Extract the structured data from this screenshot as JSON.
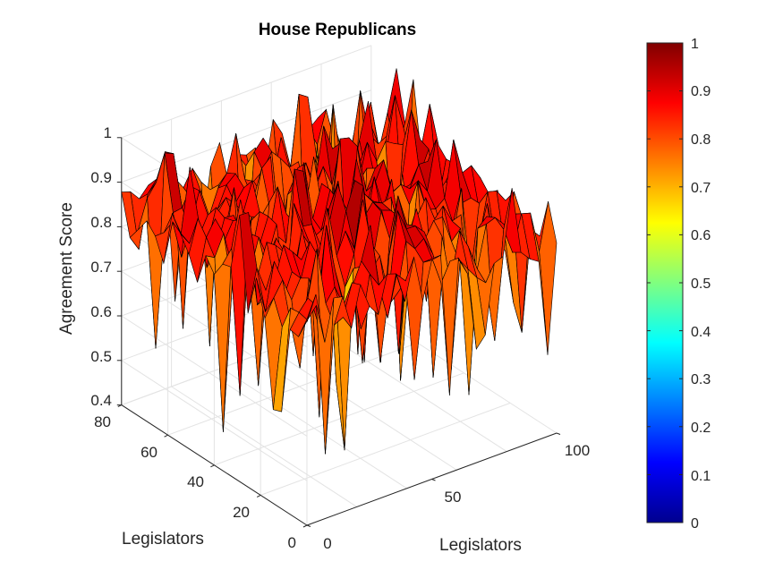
{
  "chart_data": {
    "type": "surface",
    "title": "House Republicans",
    "xlabel": "Legislators",
    "ylabel": "Legislators",
    "zlabel": "Agreement Score",
    "x_range": [
      0,
      100
    ],
    "y_range": [
      0,
      80
    ],
    "z_range": [
      0.4,
      1
    ],
    "x_ticks": [
      0,
      50,
      100
    ],
    "y_ticks": [
      0,
      20,
      40,
      60,
      80
    ],
    "z_ticks": [
      0.4,
      0.5,
      0.6,
      0.7,
      0.8,
      0.9,
      1
    ],
    "grid": true,
    "colormap": "jet",
    "colorbar": {
      "range": [
        0,
        1
      ],
      "ticks": [
        0,
        0.1,
        0.2,
        0.3,
        0.4,
        0.5,
        0.6,
        0.7,
        0.8,
        0.9,
        1
      ]
    },
    "surface_summary": {
      "grid_x": 100,
      "grid_y": 80,
      "typical_value_range": [
        0.75,
        0.97
      ],
      "minimum_value": 0.4,
      "maximum_value": 1.0
    }
  },
  "labels": {
    "title": "House Republicans",
    "xlabel": "Legislators",
    "ylabel": "Legislators",
    "zlabel": "Agreement Score",
    "x_tick_0": "0",
    "x_tick_50": "50",
    "x_tick_100": "100",
    "y_tick_0": "0",
    "y_tick_20": "20",
    "y_tick_40": "40",
    "y_tick_60": "60",
    "y_tick_80": "80",
    "z_tick_04": "0.4",
    "z_tick_05": "0.5",
    "z_tick_06": "0.6",
    "z_tick_07": "0.7",
    "z_tick_08": "0.8",
    "z_tick_09": "0.9",
    "z_tick_1": "1",
    "cb_0": "0",
    "cb_01": "0.1",
    "cb_02": "0.2",
    "cb_03": "0.3",
    "cb_04": "0.4",
    "cb_05": "0.5",
    "cb_06": "0.6",
    "cb_07": "0.7",
    "cb_08": "0.8",
    "cb_09": "0.9",
    "cb_1": "1"
  }
}
